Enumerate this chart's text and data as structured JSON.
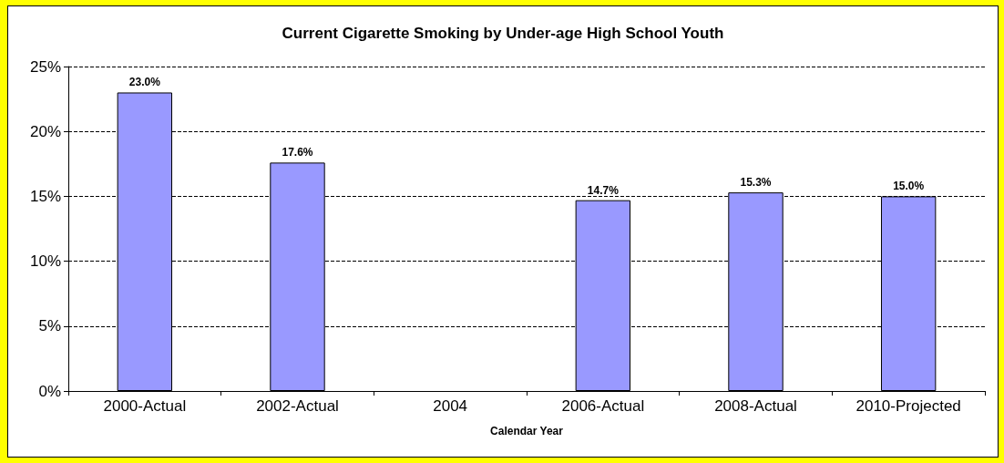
{
  "chart_data": {
    "type": "bar",
    "title": "Current Cigarette Smoking by Under-age High School Youth",
    "xlabel": "Calendar Year",
    "categories": [
      "2000-Actual",
      "2002-Actual",
      "2004",
      "2006-Actual",
      "2008-Actual",
      "2010-Projected"
    ],
    "values": [
      23.0,
      17.6,
      null,
      14.7,
      15.3,
      15.0
    ],
    "value_labels": [
      "23.0%",
      "17.6%",
      null,
      "14.7%",
      "15.3%",
      "15.0%"
    ],
    "color": "#9999ff",
    "ylim": [
      0,
      25
    ],
    "yticks": [
      {
        "value": 0,
        "label": "0%"
      },
      {
        "value": 5,
        "label": "5%"
      },
      {
        "value": 10,
        "label": "10%"
      },
      {
        "value": 15,
        "label": "15%"
      },
      {
        "value": 20,
        "label": "20%"
      },
      {
        "value": 25,
        "label": "25%"
      }
    ],
    "grid": "y",
    "line_style": "dashed"
  }
}
